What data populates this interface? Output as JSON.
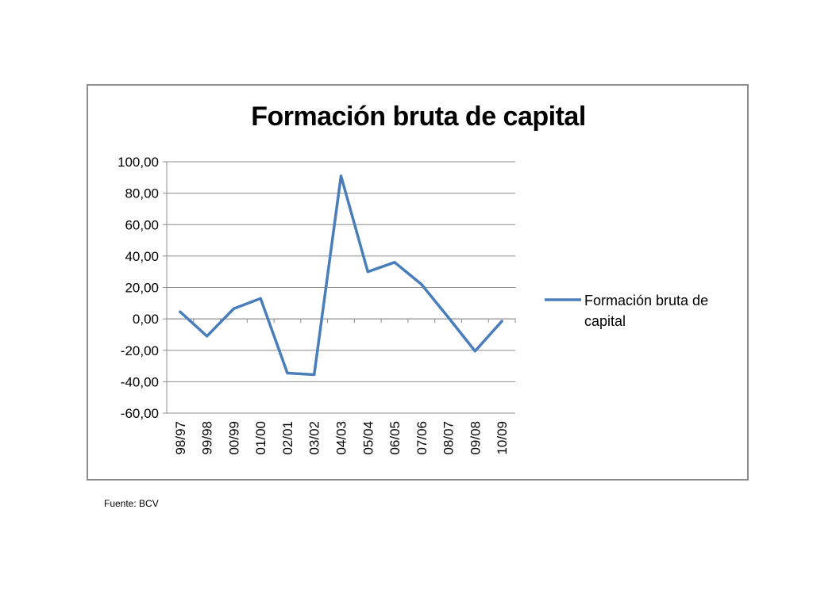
{
  "chart_data": {
    "type": "line",
    "title": "Formación bruta de capital",
    "categories": [
      "98/97",
      "99/98",
      "00/99",
      "01/00",
      "02/01",
      "03/02",
      "04/03",
      "05/04",
      "06/05",
      "07/06",
      "08/07",
      "09/08",
      "10/09"
    ],
    "series": [
      {
        "name": "Formación bruta de capital",
        "values": [
          4.5,
          -11,
          6.5,
          13,
          -34.5,
          -35.5,
          91,
          30,
          36,
          22,
          1,
          -20.5,
          -1.5
        ],
        "color": "#4a7ebb"
      }
    ],
    "ylim": [
      -60,
      100
    ],
    "yticks": [
      "-60,00",
      "-40,00",
      "-20,00",
      "0,00",
      "20,00",
      "40,00",
      "60,00",
      "80,00",
      "100,00"
    ],
    "ytick_values": [
      -60,
      -40,
      -20,
      0,
      20,
      40,
      60,
      80,
      100
    ],
    "grid": true,
    "legend": "right",
    "legend_lines": [
      "Formación bruta de",
      "capital"
    ]
  },
  "footer": {
    "source": "Fuente: BCV"
  }
}
